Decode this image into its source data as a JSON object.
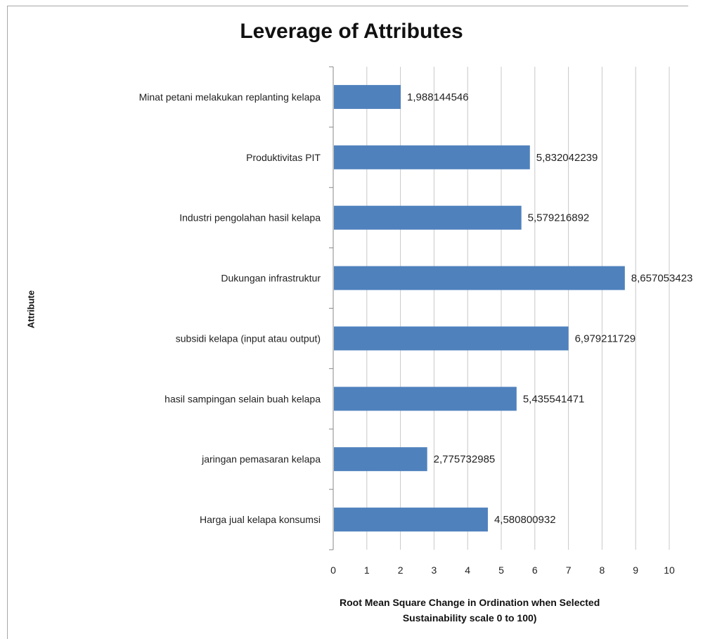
{
  "chart_data": {
    "type": "bar",
    "orientation": "horizontal",
    "title": "Leverage of Attributes",
    "ylabel": "Attribute",
    "xlabel": "Root Mean Square Change in Ordination when Selected\nSustainability scale 0 to 100)",
    "xlim": [
      0,
      10
    ],
    "xticks": [
      0,
      1,
      2,
      3,
      4,
      5,
      6,
      7,
      8,
      9,
      10
    ],
    "grid": "vertical",
    "legend": "none",
    "bar_color": "#4f81bd",
    "categories": [
      "Minat petani melakukan replanting kelapa",
      "Produktivitas PIT",
      "Industri pengolahan hasil kelapa",
      "Dukungan infrastruktur",
      "subsidi kelapa (input atau output)",
      "hasil sampingan selain buah kelapa",
      "jaringan pemasaran kelapa",
      "Harga jual kelapa konsumsi"
    ],
    "values": [
      1.988144546,
      5.832042239,
      5.579216892,
      8.657053423,
      6.979211729,
      5.435541471,
      2.775732985,
      4.580800932
    ],
    "data_labels": [
      "1,988144546",
      "5,832042239",
      "5,579216892",
      "8,657053423",
      "6,979211729",
      "5,435541471",
      "2,775732985",
      "4,580800932"
    ]
  }
}
